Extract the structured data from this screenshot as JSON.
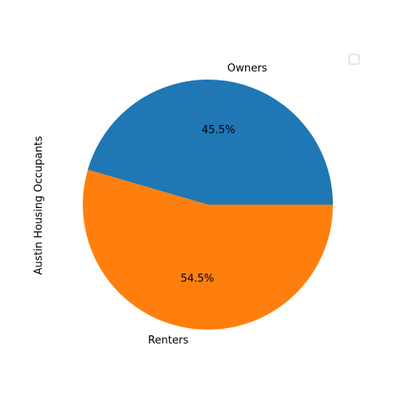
{
  "chart_data": {
    "type": "pie",
    "title": "",
    "ylabel": "Austin Housing Occupants",
    "categories": [
      "Owners",
      "Renters"
    ],
    "percentages": [
      45.5,
      54.5
    ],
    "percent_labels": [
      "45.5%",
      "54.5%"
    ],
    "colors": [
      "#1f77b4",
      "#ff7f0e"
    ],
    "start_angle_deg": 0,
    "direction": "counterclockwise",
    "legend": {
      "placement": "top-right",
      "entries": []
    }
  }
}
